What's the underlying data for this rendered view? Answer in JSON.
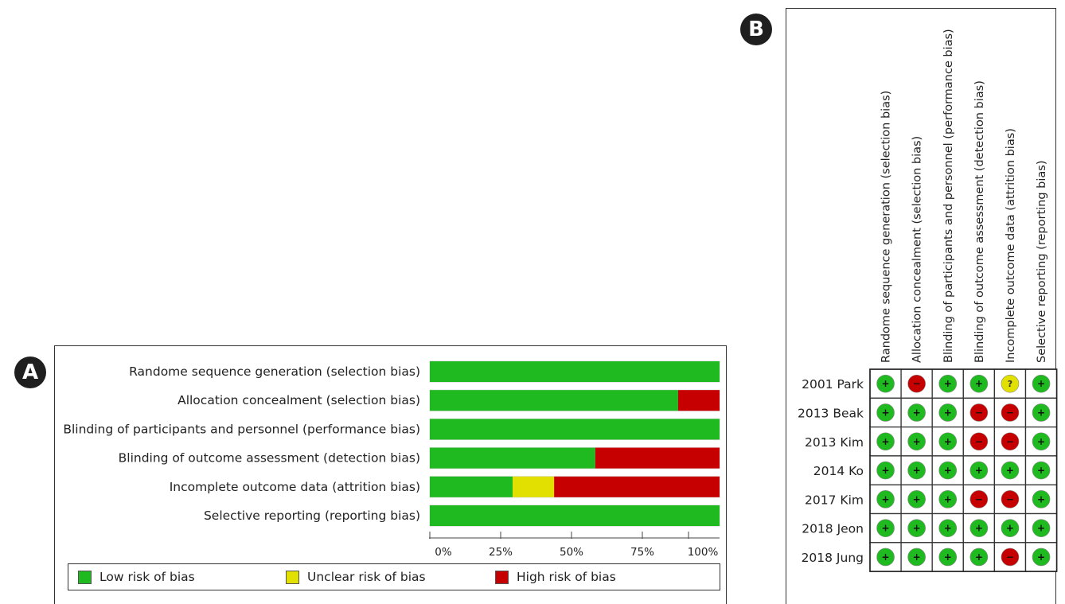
{
  "panel_labels": {
    "a": "A",
    "b": "B"
  },
  "colors": {
    "low": "#1fba1f",
    "unclear": "#e2e000",
    "high": "#c60000"
  },
  "chart_data": [
    {
      "type": "bar",
      "orientation": "horizontal",
      "stacked": true,
      "categories": [
        "Randome sequence generation (selection bias)",
        "Allocation concealment (selection bias)",
        "Blinding of participants and personnel (performance bias)",
        "Blinding of outcome assessment (detection bias)",
        "Incomplete outcome data (attrition bias)",
        "Selective reporting (reporting bias)"
      ],
      "series": [
        {
          "name": "Low risk of bias",
          "color": "#1fba1f",
          "values": [
            100,
            85.7,
            100,
            57.1,
            28.6,
            100
          ]
        },
        {
          "name": "Unclear risk of bias",
          "color": "#e2e000",
          "values": [
            0,
            0,
            0,
            0,
            14.3,
            0
          ]
        },
        {
          "name": "High risk of bias",
          "color": "#c60000",
          "values": [
            0,
            14.3,
            0,
            42.9,
            57.1,
            0
          ]
        }
      ],
      "xlim": [
        0,
        100
      ],
      "xticks": [
        "0%",
        "25%",
        "50%",
        "75%",
        "100%"
      ],
      "legend": "bottom"
    },
    {
      "type": "table",
      "columns": [
        "Randome sequence generation (selection bias)",
        "Allocation concealment (selection bias)",
        "Blinding of participants and personnel (performance bias)",
        "Blinding of outcome assessment (detection bias)",
        "Incomplete outcome data (attrition bias)",
        "Selective reporting (reporting bias)"
      ],
      "rows": [
        "2001 Park",
        "2013 Beak",
        "2013 Kim",
        "2014 Ko",
        "2017 Kim",
        "2018 Jeon",
        "2018 Jung"
      ],
      "cells": [
        [
          "low",
          "high",
          "low",
          "low",
          "unclear",
          "low"
        ],
        [
          "low",
          "low",
          "low",
          "high",
          "high",
          "low"
        ],
        [
          "low",
          "low",
          "low",
          "high",
          "high",
          "low"
        ],
        [
          "low",
          "low",
          "low",
          "low",
          "low",
          "low"
        ],
        [
          "low",
          "low",
          "low",
          "high",
          "high",
          "low"
        ],
        [
          "low",
          "low",
          "low",
          "low",
          "low",
          "low"
        ],
        [
          "low",
          "low",
          "low",
          "low",
          "high",
          "low"
        ]
      ],
      "symbols": {
        "low": "+",
        "unclear": "?",
        "high": "−"
      }
    }
  ]
}
